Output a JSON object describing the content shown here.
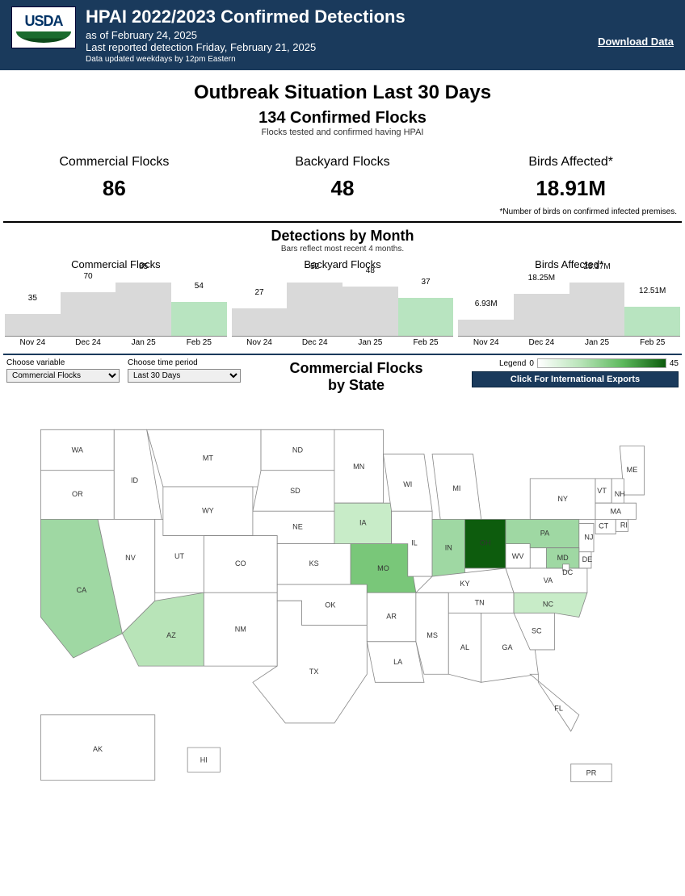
{
  "header": {
    "logo_text": "USDA",
    "title": "HPAI 2022/2023 Confirmed Detections",
    "as_of": "as of February 24, 2025",
    "last_reported": "Last reported detection Friday, February 21, 2025",
    "update_note": "Data updated weekdays by 12pm Eastern",
    "download_label": "Download Data"
  },
  "outbreak": {
    "section_title": "Outbreak Situation Last 30 Days",
    "confirmed_title": "134 Confirmed Flocks",
    "confirmed_caption": "Flocks tested and confirmed having HPAI",
    "stats": [
      {
        "label": "Commercial Flocks",
        "value": "86"
      },
      {
        "label": "Backyard Flocks",
        "value": "48"
      },
      {
        "label": "Birds Affected*",
        "value": "18.91M"
      }
    ],
    "footnote": "*Number of birds on confirmed infected premises."
  },
  "detections": {
    "title": "Detections by Month",
    "caption": "Bars reflect most recent 4 months.",
    "months": [
      "Nov 24",
      "Dec 24",
      "Jan 25",
      "Feb 25"
    ],
    "bar_color_default": "#d9d9d9",
    "bar_color_highlight": "#b8e4c0",
    "charts": [
      {
        "title": "Commercial Flocks",
        "values": [
          35,
          70,
          85,
          54
        ],
        "labels": [
          "35",
          "70",
          "85",
          "54"
        ],
        "max": 85,
        "highlight_index": 3
      },
      {
        "title": "Backyard Flocks",
        "values": [
          27,
          52,
          48,
          37
        ],
        "labels": [
          "27",
          "52",
          "48",
          "37"
        ],
        "max": 52,
        "highlight_index": 3
      },
      {
        "title": "Birds Affected*",
        "values": [
          6.93,
          18.25,
          23.17,
          12.51
        ],
        "labels": [
          "6.93M",
          "18.25M",
          "23.17M",
          "12.51M"
        ],
        "max": 23.17,
        "highlight_index": 3
      }
    ]
  },
  "map": {
    "variable_label": "Choose variable",
    "variable_value": "Commercial Flocks",
    "period_label": "Choose time period",
    "period_value": "Last 30 Days",
    "title_line1": "Commercial Flocks",
    "title_line2": "by State",
    "legend_label": "Legend",
    "legend_min": "0",
    "legend_max": "45",
    "intl_button": "Click For International Exports",
    "state_stroke": "#888888",
    "fill_none": "#ffffff",
    "states": {
      "WA": {
        "fill": "#ffffff"
      },
      "OR": {
        "fill": "#ffffff"
      },
      "CA": {
        "fill": "#9fd8a3"
      },
      "ID": {
        "fill": "#ffffff"
      },
      "NV": {
        "fill": "#ffffff"
      },
      "UT": {
        "fill": "#ffffff"
      },
      "AZ": {
        "fill": "#b8e4b8"
      },
      "MT": {
        "fill": "#ffffff"
      },
      "WY": {
        "fill": "#ffffff"
      },
      "CO": {
        "fill": "#ffffff"
      },
      "NM": {
        "fill": "#ffffff"
      },
      "ND": {
        "fill": "#ffffff"
      },
      "SD": {
        "fill": "#ffffff"
      },
      "NE": {
        "fill": "#ffffff"
      },
      "KS": {
        "fill": "#ffffff"
      },
      "OK": {
        "fill": "#ffffff"
      },
      "TX": {
        "fill": "#ffffff"
      },
      "MN": {
        "fill": "#ffffff"
      },
      "IA": {
        "fill": "#c8ecc8"
      },
      "MO": {
        "fill": "#79c779"
      },
      "AR": {
        "fill": "#ffffff"
      },
      "LA": {
        "fill": "#ffffff"
      },
      "WI": {
        "fill": "#ffffff"
      },
      "IL": {
        "fill": "#ffffff"
      },
      "MS": {
        "fill": "#ffffff"
      },
      "MI": {
        "fill": "#ffffff"
      },
      "IN": {
        "fill": "#9fd8a3"
      },
      "OH": {
        "fill": "#0d5c0d",
        "label_fill": "#ffffff"
      },
      "KY": {
        "fill": "#ffffff"
      },
      "TN": {
        "fill": "#ffffff"
      },
      "AL": {
        "fill": "#ffffff"
      },
      "GA": {
        "fill": "#ffffff"
      },
      "FL": {
        "fill": "#ffffff"
      },
      "SC": {
        "fill": "#ffffff"
      },
      "NC": {
        "fill": "#c8ecc8"
      },
      "VA": {
        "fill": "#ffffff"
      },
      "WV": {
        "fill": "#ffffff"
      },
      "PA": {
        "fill": "#9fd8a3"
      },
      "NY": {
        "fill": "#ffffff"
      },
      "ME": {
        "fill": "#ffffff"
      },
      "VT": {
        "fill": "#ffffff"
      },
      "NH": {
        "fill": "#ffffff"
      },
      "MA": {
        "fill": "#ffffff"
      },
      "CT": {
        "fill": "#ffffff"
      },
      "RI": {
        "fill": "#ffffff"
      },
      "NJ": {
        "fill": "#ffffff"
      },
      "DE": {
        "fill": "#ffffff"
      },
      "MD": {
        "fill": "#9fd8a3"
      },
      "DC": {
        "fill": "#ffffff"
      },
      "AK": {
        "fill": "#ffffff"
      },
      "HI": {
        "fill": "#ffffff"
      },
      "PR": {
        "fill": "#ffffff"
      }
    }
  }
}
